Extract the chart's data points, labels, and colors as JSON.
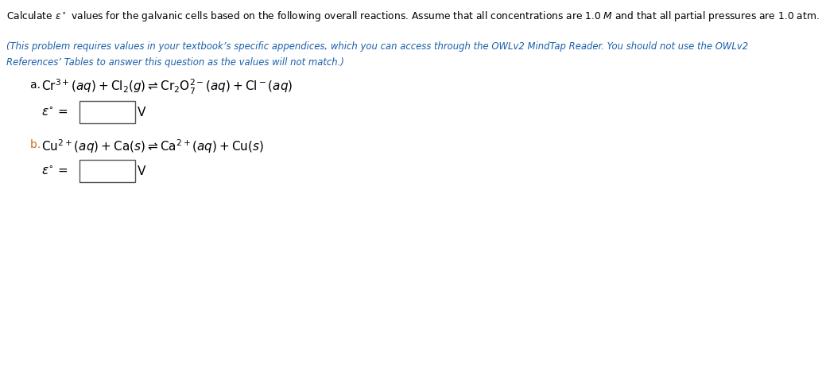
{
  "title_text": "Calculate $\\varepsilon^\\circ$ values for the galvanic cells based on the following overall reactions. Assume that all concentrations are 1.0 $M$ and that all partial pressures are 1.0 atm.",
  "italic_line1": "(This problem requires values in your textbook’s specific appendices, which you can access through the OWLv2 MindTap Reader. You should not use the OWLv2",
  "italic_line2": "References’ Tables to answer this question as the values will not match.)",
  "part_a_label": "a.",
  "part_a_reaction": "$\\mathrm{Cr}^{3+}\\,(aq) + \\mathrm{Cl}_2\\,(g) \\rightleftharpoons \\mathrm{Cr}_2\\mathrm{O}_7^{\\,2-}\\,(aq) + \\mathrm{Cl}^-\\,(aq)$",
  "part_a_eps": "$\\varepsilon^\\circ$ =",
  "part_a_unit": "V",
  "part_b_label": "b.",
  "part_b_reaction": "$\\mathrm{Cu}^{2+}\\,(aq) + \\mathrm{Ca}(s) \\rightleftharpoons \\mathrm{Ca}^{2+}\\,(aq) + \\mathrm{Cu}(s)$",
  "part_b_eps": "$\\varepsilon^\\circ$ =",
  "part_b_unit": "V",
  "bg_color": "#ffffff",
  "title_color": "#000000",
  "bold_words_color": "#000000",
  "italic_color": "#1a5faa",
  "reaction_color": "#000000",
  "label_color_a": "#000000",
  "label_color_b": "#c87020",
  "box_edge_color": "#555555",
  "box_fill": "#ffffff",
  "eps_color": "#c87020",
  "unit_color": "#1a5faa"
}
